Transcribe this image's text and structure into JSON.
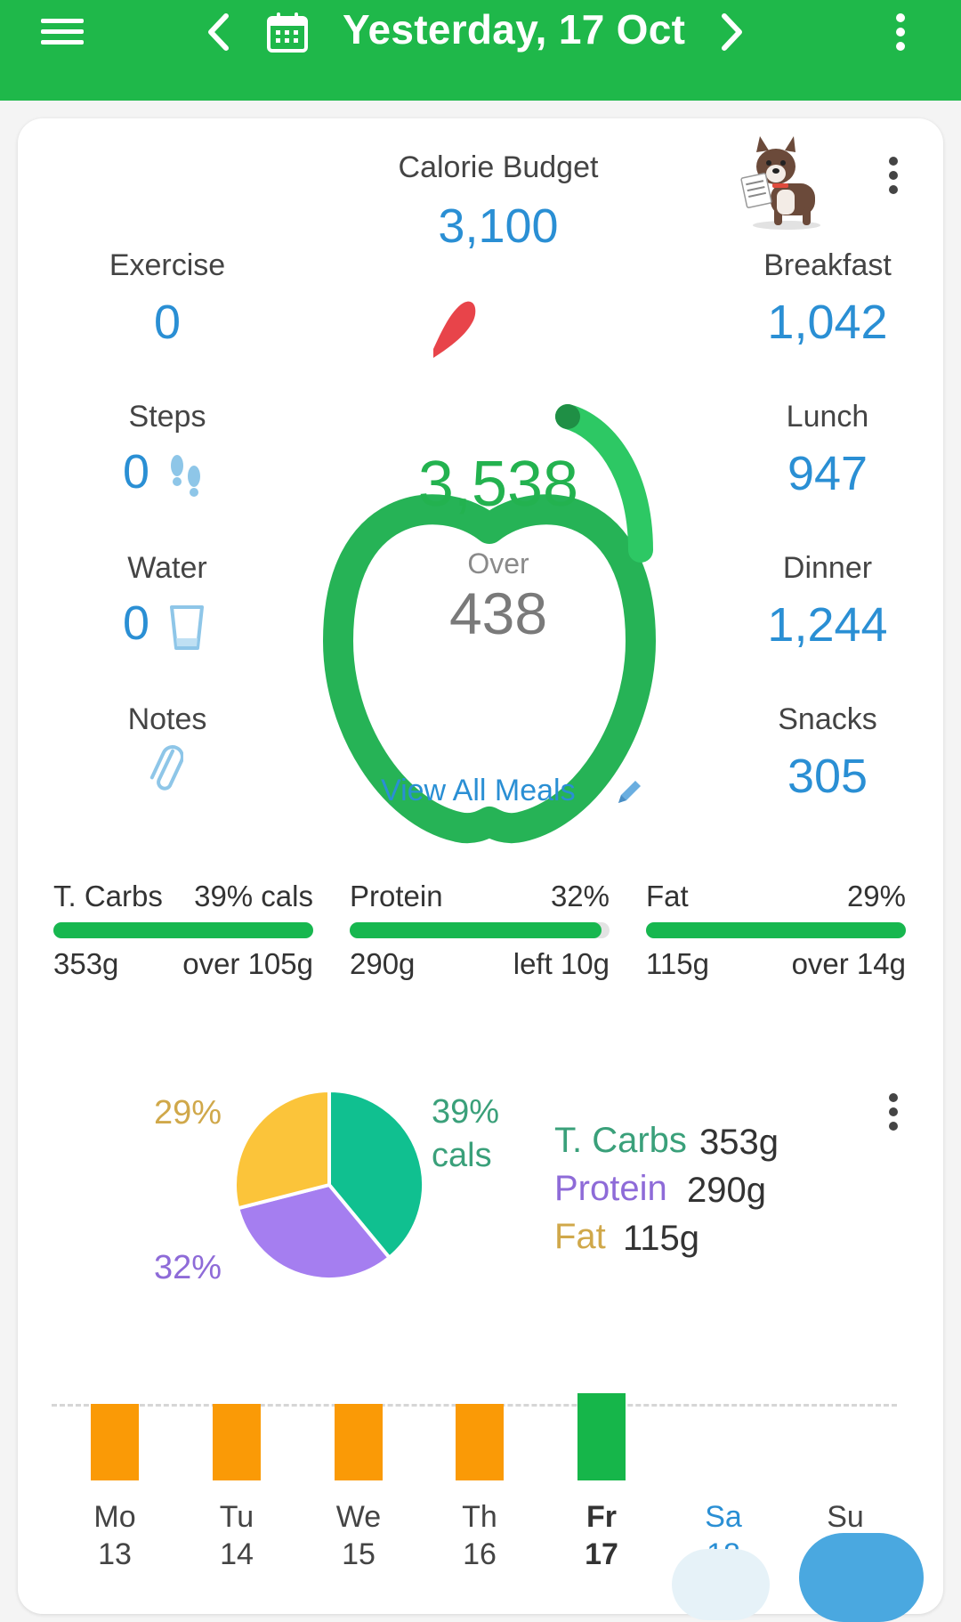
{
  "header": {
    "title": "Yesterday, 17 Oct"
  },
  "budget": {
    "label": "Calorie Budget",
    "value": "3,100"
  },
  "left": {
    "exercise_label": "Exercise",
    "exercise_value": "0",
    "steps_label": "Steps",
    "steps_value": "0",
    "water_label": "Water",
    "water_value": "0",
    "notes_label": "Notes"
  },
  "right": {
    "breakfast_label": "Breakfast",
    "breakfast_value": "1,042",
    "lunch_label": "Lunch",
    "lunch_value": "947",
    "dinner_label": "Dinner",
    "dinner_value": "1,244",
    "snacks_label": "Snacks",
    "snacks_value": "305"
  },
  "apple": {
    "eaten": "3,538",
    "status": "Over",
    "difference": "438"
  },
  "view_all_meals": "View All Meals",
  "macros": [
    {
      "name": "T. Carbs",
      "pct": "39% cals",
      "grams": "353g",
      "delta": "over 105g",
      "fill": 1.0
    },
    {
      "name": "Protein",
      "pct": "32%",
      "grams": "290g",
      "delta": "left 10g",
      "fill": 0.97
    },
    {
      "name": "Fat",
      "pct": "29%",
      "grams": "115g",
      "delta": "over 14g",
      "fill": 1.0
    }
  ],
  "pie": {
    "carbs_label_pct": "39%",
    "carbs_label_unit": "cals",
    "protein_label_pct": "32%",
    "fat_label_pct": "29%",
    "legend": [
      {
        "name": "T. Carbs",
        "grams": "353g"
      },
      {
        "name": "Protein",
        "grams": "290g"
      },
      {
        "name": "Fat",
        "grams": "115g"
      }
    ]
  },
  "chart_data": {
    "type": "pie",
    "categories": [
      "T. Carbs",
      "Protein",
      "Fat"
    ],
    "values": [
      39,
      32,
      29
    ],
    "colors": [
      "#10c090",
      "#a57ef0",
      "#fbc43a"
    ]
  },
  "week": {
    "days": [
      {
        "name": "Mo",
        "date": "13"
      },
      {
        "name": "Tu",
        "date": "14"
      },
      {
        "name": "We",
        "date": "15"
      },
      {
        "name": "Th",
        "date": "16"
      },
      {
        "name": "Fr",
        "date": "17"
      },
      {
        "name": "Sa",
        "date": "18"
      },
      {
        "name": "Su",
        "date": ""
      }
    ]
  },
  "colors": {
    "brand_green": "#1fb84a",
    "value_blue": "#2a8fd4",
    "over_bar_orange": "#fa9a06",
    "today_bar_green": "#16b64a",
    "carbs_text": "#3aa07a",
    "protein_text": "#8e6bd8",
    "fat_text": "#d0a84a"
  }
}
